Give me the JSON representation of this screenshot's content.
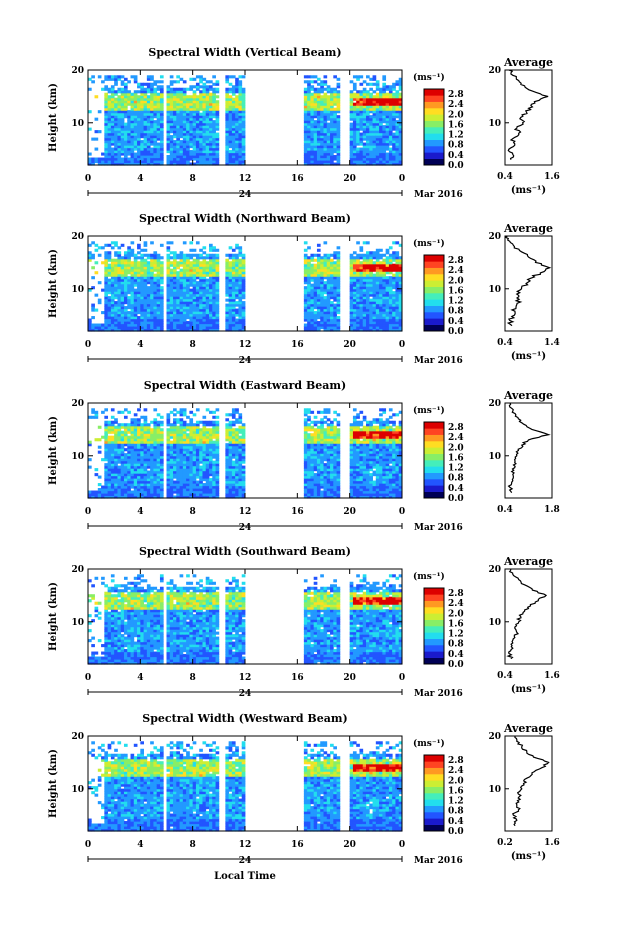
{
  "chart_data": {
    "type": "heatmap",
    "date_label": "Mar 2016",
    "day_label": "24",
    "xlabel": "Local Time",
    "ylabel": "Height (km)",
    "x_ticks": [
      "0",
      "4",
      "8",
      "12",
      "16",
      "20",
      "0"
    ],
    "y_ticks": [
      "10",
      "20"
    ],
    "xlim": [
      0,
      24
    ],
    "ylim": [
      2,
      20
    ],
    "data_gaps_hours": [
      [
        5.8,
        6.0
      ],
      [
        10.0,
        10.5
      ],
      [
        12.0,
        16.5
      ],
      [
        19.3,
        20.1
      ]
    ],
    "colorbar": {
      "unit": "(ms⁻¹)",
      "ticks": [
        "2.8",
        "2.4",
        "2.0",
        "1.6",
        "1.2",
        "0.8",
        "0.4",
        "0.0"
      ],
      "range": [
        0,
        3.0
      ],
      "colors": [
        "#000055",
        "#1a1acc",
        "#2255ff",
        "#2299ff",
        "#22ddee",
        "#44eebb",
        "#88ee66",
        "#ccee33",
        "#ffdd22",
        "#ff9922",
        "#ff4422",
        "#dd0000"
      ]
    },
    "panels": [
      {
        "title": "Spectral Width (Vertical Beam)",
        "avg_title": "Average",
        "avg_xlabel": "(ms⁻¹)",
        "avg_xticks": [
          "0.4",
          "1.6"
        ],
        "avg_xlim": [
          0.4,
          1.6
        ],
        "avg_profile": {
          "height_km": [
            3,
            4,
            5,
            6,
            7,
            8,
            9,
            10,
            11,
            12,
            13,
            14,
            15,
            16,
            17,
            18,
            19,
            20
          ],
          "width_ms": [
            0.55,
            0.6,
            0.5,
            0.65,
            0.6,
            0.75,
            0.7,
            0.85,
            0.8,
            0.95,
            1.1,
            1.15,
            1.5,
            1.1,
            0.9,
            0.75,
            0.6,
            0.5
          ]
        }
      },
      {
        "title": "Spectral Width (Northward Beam)",
        "avg_title": "Average",
        "avg_xlabel": "(ms⁻¹)",
        "avg_xticks": [
          "0.4",
          "1.4"
        ],
        "avg_xlim": [
          0.4,
          1.4
        ],
        "avg_profile": {
          "height_km": [
            3,
            4,
            5,
            6,
            7,
            8,
            9,
            10,
            11,
            12,
            13,
            14,
            15,
            16,
            17,
            18,
            19,
            20
          ],
          "width_ms": [
            0.55,
            0.5,
            0.6,
            0.55,
            0.65,
            0.7,
            0.65,
            0.75,
            0.85,
            0.95,
            1.15,
            1.35,
            1.05,
            0.9,
            0.75,
            0.6,
            0.5,
            0.45
          ]
        }
      },
      {
        "title": "Spectral Width (Eastward Beam)",
        "avg_title": "Average",
        "avg_xlabel": "",
        "avg_xticks": [
          "0.4",
          "1.8"
        ],
        "avg_xlim": [
          0.4,
          1.8
        ],
        "avg_profile": {
          "height_km": [
            3,
            4,
            5,
            6,
            7,
            8,
            9,
            10,
            11,
            12,
            13,
            14,
            15,
            16,
            17,
            18,
            19,
            20
          ],
          "width_ms": [
            0.6,
            0.55,
            0.6,
            0.65,
            0.6,
            0.7,
            0.7,
            0.75,
            0.8,
            0.9,
            1.1,
            1.7,
            1.2,
            0.95,
            0.8,
            0.7,
            0.6,
            0.55
          ]
        }
      },
      {
        "title": "Spectral Width (Southward Beam)",
        "avg_title": "Average",
        "avg_xlabel": "(ms⁻¹)",
        "avg_xticks": [
          "0.4",
          "1.6"
        ],
        "avg_xlim": [
          0.4,
          1.6
        ],
        "avg_profile": {
          "height_km": [
            3,
            4,
            5,
            6,
            7,
            8,
            9,
            10,
            11,
            12,
            13,
            14,
            15,
            16,
            17,
            18,
            19,
            20
          ],
          "width_ms": [
            0.55,
            0.5,
            0.6,
            0.6,
            0.65,
            0.7,
            0.65,
            0.75,
            0.8,
            0.9,
            1.05,
            1.25,
            1.45,
            1.1,
            0.9,
            0.75,
            0.6,
            0.55
          ]
        }
      },
      {
        "title": "Spectral Width (Westward Beam)",
        "avg_title": "Average",
        "avg_xlabel": "(ms⁻¹)",
        "avg_xticks": [
          "0.2",
          "1.6"
        ],
        "avg_xlim": [
          0.2,
          1.6
        ],
        "avg_profile": {
          "height_km": [
            3,
            4,
            5,
            6,
            7,
            8,
            9,
            10,
            11,
            12,
            13,
            14,
            15,
            16,
            17,
            18,
            19,
            20
          ],
          "width_ms": [
            0.5,
            0.55,
            0.45,
            0.6,
            0.55,
            0.65,
            0.6,
            0.7,
            0.75,
            0.85,
            1.0,
            1.3,
            1.5,
            1.05,
            0.85,
            0.7,
            0.55,
            0.5
          ]
        }
      }
    ]
  }
}
